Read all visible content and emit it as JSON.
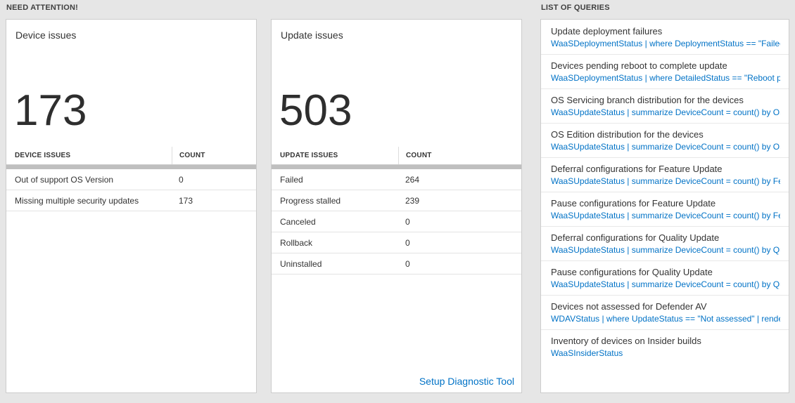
{
  "colors": {
    "background": "#e6e6e6",
    "card_background": "#ffffff",
    "card_border": "#cccccc",
    "link_blue": "#0072c6",
    "text_dark": "#333333",
    "grid_header_bar": "#bfbfbf"
  },
  "need_attention": {
    "header": "NEED ATTENTION!",
    "device_card": {
      "title": "Device issues",
      "count": "173",
      "columns": [
        "DEVICE ISSUES",
        "COUNT"
      ],
      "rows": [
        {
          "label": "Out of support OS Version",
          "value": "0"
        },
        {
          "label": "Missing multiple security updates",
          "value": "173"
        }
      ]
    },
    "update_card": {
      "title": "Update issues",
      "count": "503",
      "columns": [
        "UPDATE ISSUES",
        "COUNT"
      ],
      "rows": [
        {
          "label": "Failed",
          "value": "264"
        },
        {
          "label": "Progress stalled",
          "value": "239"
        },
        {
          "label": "Canceled",
          "value": "0"
        },
        {
          "label": "Rollback",
          "value": "0"
        },
        {
          "label": "Uninstalled",
          "value": "0"
        }
      ],
      "footer_link": "Setup Diagnostic Tool"
    }
  },
  "queries": {
    "header": "LIST OF QUERIES",
    "items": [
      {
        "title": "Update deployment failures",
        "query": "WaaSDeploymentStatus | where DeploymentStatus == \"Failed\" |..."
      },
      {
        "title": "Devices pending reboot to complete update",
        "query": "WaaSDeploymentStatus | where DetailedStatus == \"Reboot pend..."
      },
      {
        "title": "OS Servicing branch distribution for the devices",
        "query": "WaaSUpdateStatus | summarize DeviceCount = count() by OSSer..."
      },
      {
        "title": "OS Edition distribution for the devices",
        "query": "WaaSUpdateStatus | summarize DeviceCount = count() by OSEdit..."
      },
      {
        "title": "Deferral configurations for Feature Update",
        "query": "WaaSUpdateStatus | summarize DeviceCount = count() by Featur..."
      },
      {
        "title": "Pause configurations for Feature Update",
        "query": "WaaSUpdateStatus | summarize DeviceCount = count() by Featur..."
      },
      {
        "title": "Deferral configurations for Quality Update",
        "query": "WaaSUpdateStatus | summarize DeviceCount = count() by Qualit..."
      },
      {
        "title": "Pause configurations for Quality Update",
        "query": "WaaSUpdateStatus | summarize DeviceCount = count() by Qualit..."
      },
      {
        "title": "Devices not assessed for Defender AV",
        "query": "WDAVStatus | where UpdateStatus == \"Not assessed\" | render ta..."
      },
      {
        "title": "Inventory of devices on Insider builds",
        "query": "WaaSInsiderStatus"
      }
    ]
  }
}
